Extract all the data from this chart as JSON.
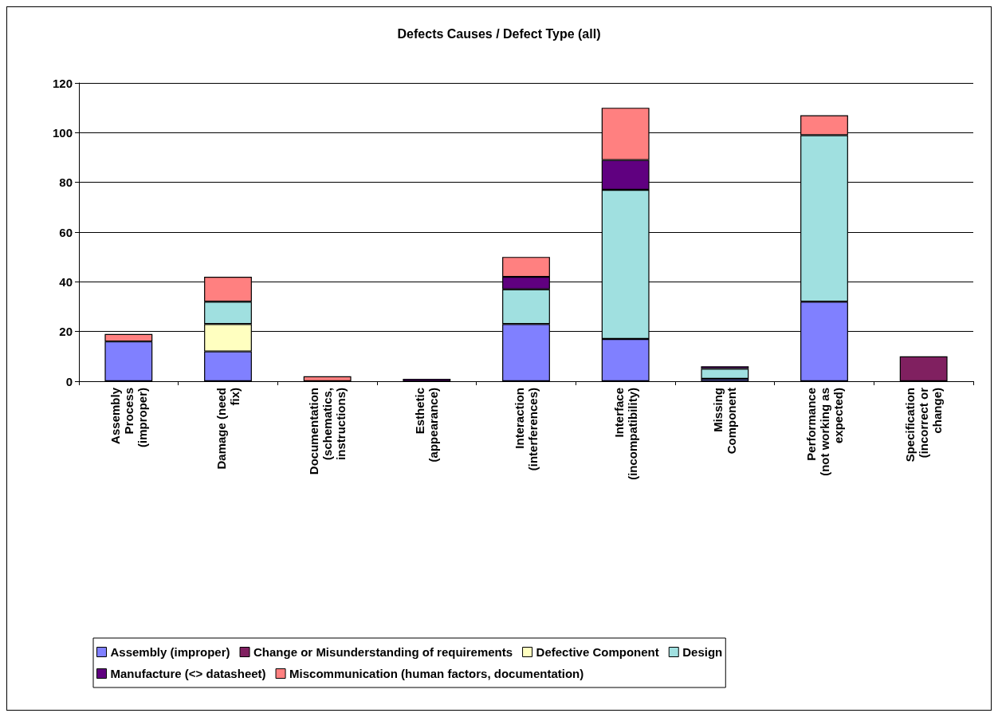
{
  "chart_data": {
    "type": "bar",
    "title": "Defects Causes / Defect Type (all)",
    "stacked": true,
    "categories": [
      "Assembly Process (improper)",
      "Damage (need fix)",
      "Documentation (schematics, instructions)",
      "Esthetic (appearance)",
      "Interaction (interferences)",
      "Interface (incompatibility)",
      "Missing Component",
      "Performance (not working as expected)",
      "Specification (incorrect or change)"
    ],
    "series": [
      {
        "name": "Assembly (improper)",
        "color": "#8080ff",
        "values": [
          16,
          12,
          null,
          null,
          23,
          17,
          1,
          32,
          null
        ]
      },
      {
        "name": "Change or Misunderstanding of requirements",
        "color": "#802060",
        "values": [
          null,
          null,
          null,
          null,
          null,
          null,
          null,
          null,
          10
        ]
      },
      {
        "name": "Defective Component",
        "color": "#ffffc0",
        "values": [
          null,
          11,
          null,
          null,
          null,
          null,
          null,
          null,
          null
        ]
      },
      {
        "name": "Design",
        "color": "#a0e0e0",
        "values": [
          null,
          9,
          null,
          null,
          14,
          60,
          4,
          67,
          null
        ]
      },
      {
        "name": "Manufacture (<> datasheet)",
        "color": "#600080",
        "values": [
          null,
          null,
          null,
          1,
          5,
          12,
          1,
          null,
          null
        ]
      },
      {
        "name": "Miscommunication (human factors, documentation)",
        "color": "#ff8080",
        "values": [
          3,
          10,
          2,
          null,
          8,
          21,
          null,
          8,
          null
        ]
      }
    ],
    "ylim": [
      0,
      120
    ],
    "yticks": [
      0,
      20,
      40,
      60,
      80,
      100,
      120
    ],
    "grid": "y",
    "legend": "bottom"
  }
}
